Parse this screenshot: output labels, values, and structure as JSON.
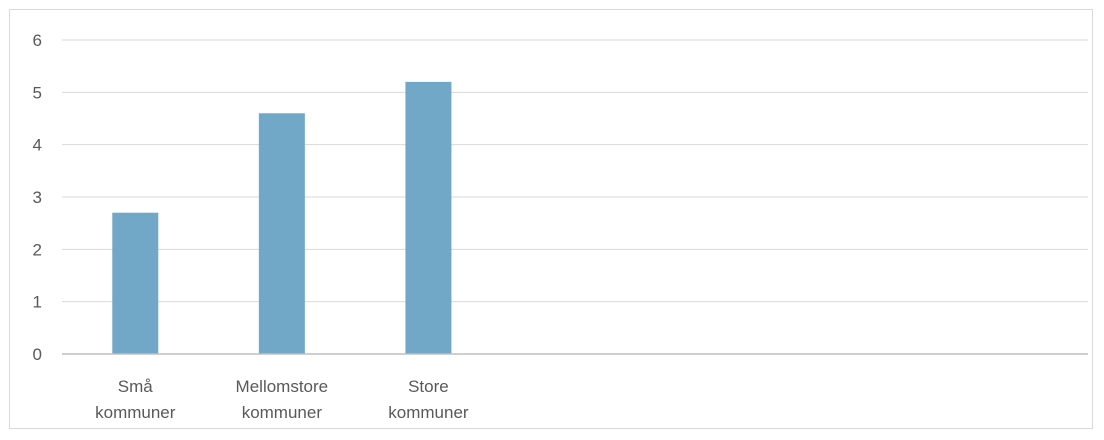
{
  "chart_data": {
    "type": "bar",
    "categories": [
      [
        "Små",
        "kommuner"
      ],
      [
        "Mellomstore",
        "kommuner"
      ],
      [
        "Store",
        "kommuner"
      ],
      [
        "",
        ""
      ],
      [
        "",
        ""
      ],
      [
        "",
        ""
      ],
      [
        "",
        ""
      ]
    ],
    "values": [
      2.7,
      4.6,
      5.2,
      null,
      null,
      null,
      null
    ],
    "title": "",
    "xlabel": "",
    "ylabel": "",
    "ylim": [
      0,
      6
    ],
    "yticks": [
      "0",
      "1",
      "2",
      "3",
      "4",
      "5",
      "6"
    ],
    "grid": true,
    "legend": "none",
    "colors": {
      "bar": "#71a8c8",
      "grid": "#d9d9d9",
      "axis": "#bfbfbf",
      "text": "#595959"
    }
  }
}
